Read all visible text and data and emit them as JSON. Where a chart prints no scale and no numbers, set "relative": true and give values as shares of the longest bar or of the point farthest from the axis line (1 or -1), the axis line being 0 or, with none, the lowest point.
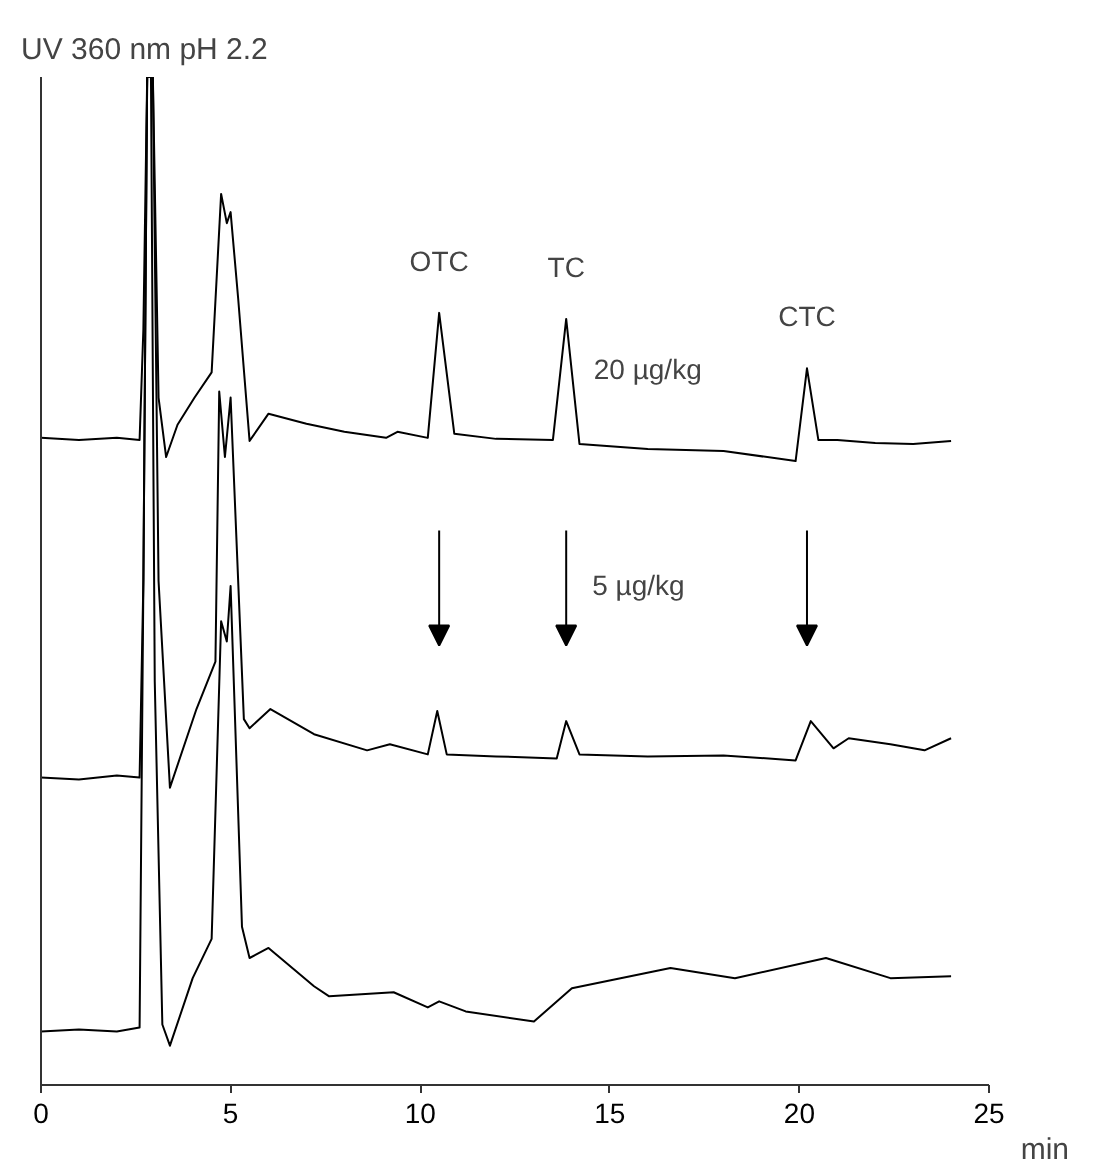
{
  "chart_data": {
    "type": "line",
    "title": "UV 360 nm pH 2.2",
    "xlabel": "min",
    "relative": true,
    "xlim": [
      0,
      25
    ],
    "xticks": [
      0,
      5,
      10,
      15,
      20,
      25
    ],
    "tick_labels": "x",
    "grid": false,
    "marker": "none",
    "line_style": "solid",
    "annotations": [
      {
        "text": "OTC",
        "x": 10.5,
        "y": 0.766
      },
      {
        "text": "TC",
        "x": 13.85,
        "y": 0.76
      },
      {
        "text": "CTC",
        "x": 20.2,
        "y": 0.711
      },
      {
        "text": "20 µg/kg",
        "x": 16,
        "y": 0.631
      },
      "5 µg/kg"
    ],
    "series": [
      {
        "color": "#000000",
        "x": [
          0,
          1,
          2,
          2.6,
          2.7,
          2.8,
          2.95,
          3.1,
          3.3,
          3.6,
          4.05,
          4.5,
          4.75,
          4.9,
          5.0,
          5.2,
          5.5,
          6.0,
          7,
          8,
          9.1,
          9.4,
          10.2,
          10.5,
          10.9,
          12,
          13.5,
          13.85,
          14.2,
          16,
          18,
          19.9,
          20.2,
          20.5,
          21,
          22,
          23,
          24
        ],
        "values": [
          0.642,
          0.64,
          0.642,
          0.64,
          0.75,
          1.0,
          1.0,
          0.682,
          0.623,
          0.655,
          0.682,
          0.707,
          0.884,
          0.855,
          0.866,
          0.78,
          0.639,
          0.666,
          0.656,
          0.648,
          0.642,
          0.648,
          0.642,
          0.766,
          0.646,
          0.641,
          0.64,
          0.76,
          0.636,
          0.631,
          0.629,
          0.619,
          0.711,
          0.64,
          0.64,
          0.637,
          0.636,
          0.639
        ]
      },
      {
        "color": "#000000",
        "x": [
          0,
          1,
          2,
          2.6,
          2.7,
          2.8,
          2.95,
          3.1,
          3.4,
          4.1,
          4.6,
          4.7,
          4.85,
          5.0,
          5.35,
          5.5,
          6.05,
          7.2,
          8.6,
          9.2,
          10.2,
          10.45,
          10.7,
          12,
          13.6,
          13.85,
          14.2,
          16,
          18,
          19.9,
          20.3,
          20.9,
          21.3,
          22.4,
          23.3,
          24
        ],
        "values": [
          0.305,
          0.303,
          0.307,
          0.305,
          0.5,
          1.0,
          1.0,
          0.5,
          0.295,
          0.373,
          0.42,
          0.688,
          0.623,
          0.682,
          0.363,
          0.354,
          0.373,
          0.348,
          0.332,
          0.338,
          0.328,
          0.371,
          0.328,
          0.326,
          0.324,
          0.361,
          0.328,
          0.326,
          0.327,
          0.322,
          0.361,
          0.334,
          0.344,
          0.338,
          0.332,
          0.344
        ]
      },
      {
        "color": "#000000",
        "x": [
          0,
          1,
          2,
          2.6,
          2.7,
          2.8,
          2.9,
          3.0,
          3.2,
          3.4,
          4.0,
          4.5,
          4.75,
          4.9,
          5.0,
          5.3,
          5.5,
          6.0,
          7.2,
          7.6,
          9.3,
          10.2,
          10.5,
          11.2,
          13.0,
          14.0,
          16.6,
          18.3,
          20.7,
          22.4,
          24
        ],
        "values": [
          0.053,
          0.055,
          0.053,
          0.057,
          0.5,
          1.0,
          1.0,
          0.4,
          0.06,
          0.039,
          0.106,
          0.145,
          0.46,
          0.44,
          0.495,
          0.157,
          0.126,
          0.136,
          0.098,
          0.088,
          0.092,
          0.077,
          0.083,
          0.073,
          0.063,
          0.096,
          0.116,
          0.106,
          0.126,
          0.106,
          0.108
        ]
      }
    ]
  }
}
